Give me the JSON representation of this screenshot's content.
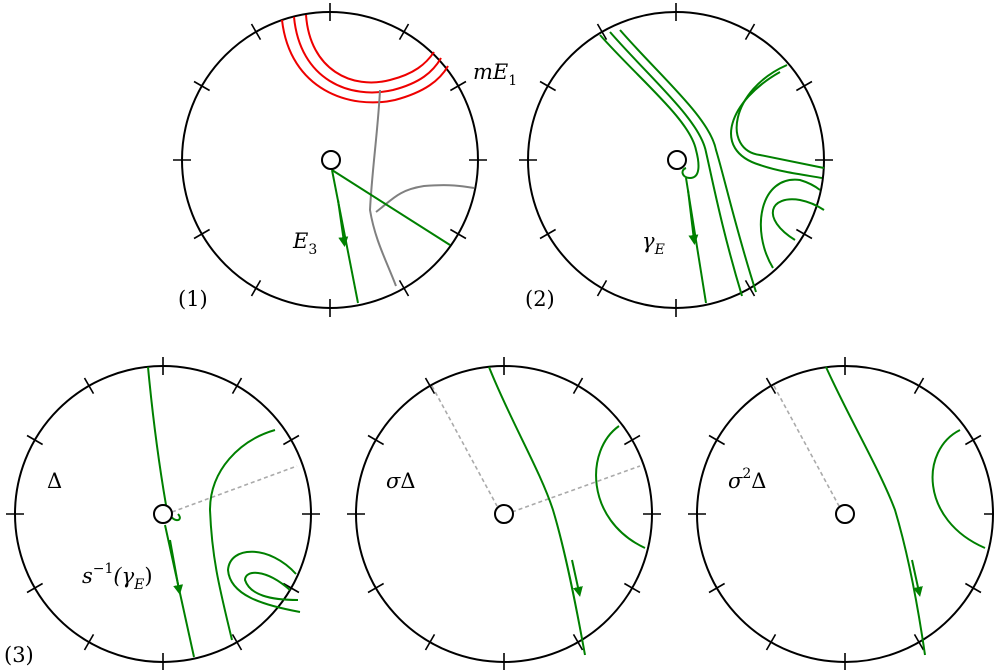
{
  "panels": {
    "p1": {
      "number": "(1)",
      "curve_label": "E",
      "curve_label_sub": "3",
      "red_label": "mE",
      "red_label_sub": "1"
    },
    "p2": {
      "number": "(2)",
      "curve_label": "γ",
      "curve_label_sub": "E"
    },
    "p3": {
      "number": "(3)"
    },
    "p3a": {
      "label": "Δ",
      "curve_label_pre": "s",
      "curve_label_sup": "−1",
      "curve_label_open": "(γ",
      "curve_label_sub": "E",
      "curve_label_close": ")"
    },
    "p3b": {
      "label_sigma": "σ",
      "label_delta": "Δ"
    },
    "p3c": {
      "label_sigma": "σ",
      "label_sup": "2",
      "label_delta": "Δ"
    }
  },
  "colors": {
    "curve": "#008000",
    "red_curve": "#ee0000",
    "gray_curve": "#808080",
    "dashed": "#aaaaaa",
    "stroke": "#000000"
  }
}
